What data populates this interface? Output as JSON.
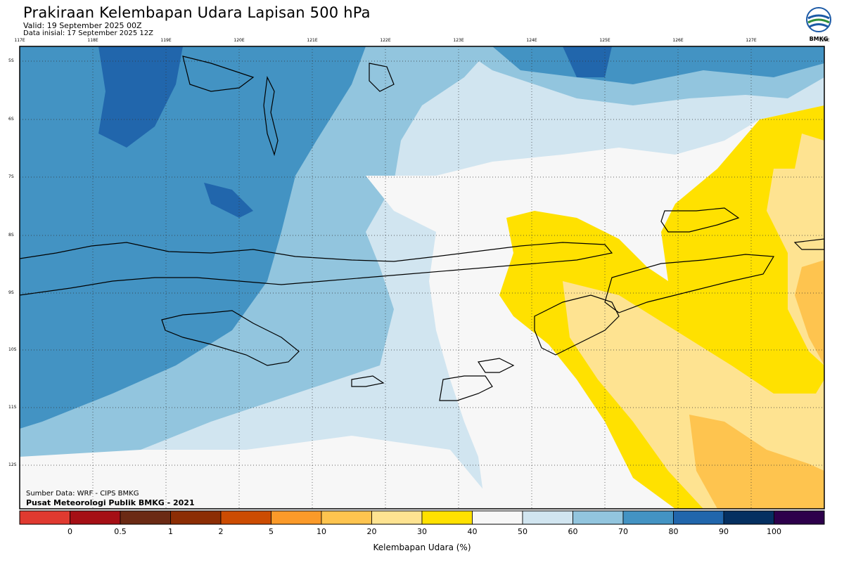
{
  "title": "Prakiraan Kelembapan Udara Lapisan 500 hPa",
  "valid": "Valid: 19 September 2025 00Z",
  "initial": "Data inisial: 17 September 2025 12Z",
  "logo_text": "BMKG",
  "source": "Sumber Data: WRF - CIPS BMKG",
  "center": "Pusat Meteorologi Publik BMKG - 2021",
  "colorbar": {
    "label": "Kelembapan Udara (%)",
    "ticks": [
      "0",
      "0.5",
      "1",
      "2",
      "5",
      "10",
      "20",
      "30",
      "40",
      "50",
      "60",
      "70",
      "80",
      "90",
      "100"
    ],
    "colors": [
      "#e03a30",
      "#a50f15",
      "#6b2a14",
      "#8c2d04",
      "#cc4c02",
      "#fb9a29",
      "#fec44f",
      "#fee391",
      "#ffe100",
      "#f7f7f7",
      "#d1e5f0",
      "#92c5de",
      "#4393c3",
      "#2166ac",
      "#053061",
      "#2d004b"
    ]
  },
  "map": {
    "lon_labels": [
      "117E",
      "118E",
      "119E",
      "120E",
      "121E",
      "122E",
      "123E",
      "124E",
      "125E",
      "126E",
      "127E",
      "128E"
    ],
    "lat_labels": [
      "5S",
      "6S",
      "7S",
      "8S",
      "9S",
      "10S",
      "11S",
      "12S"
    ]
  }
}
